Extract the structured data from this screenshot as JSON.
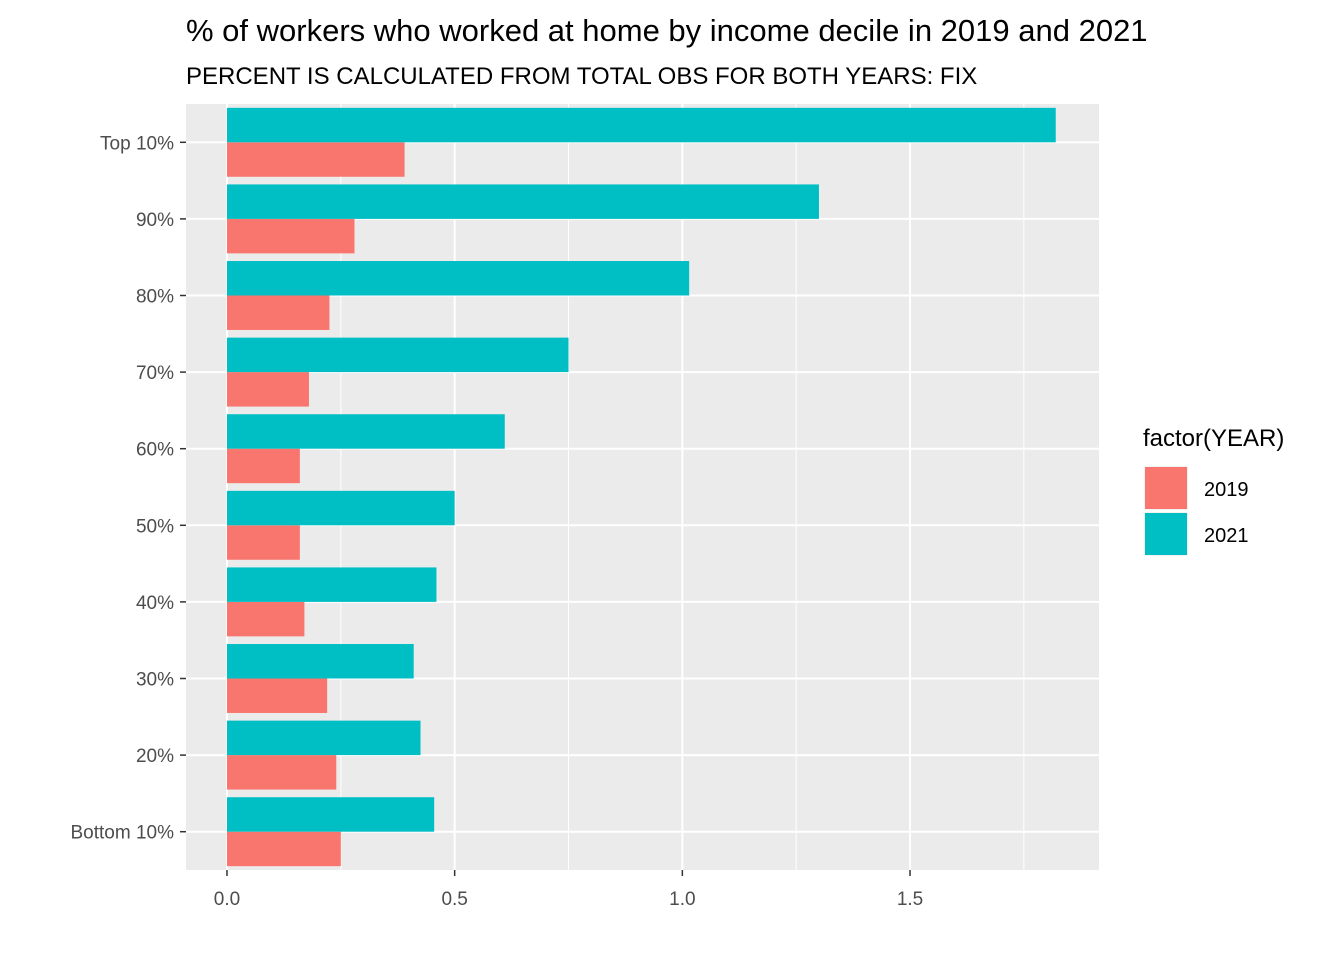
{
  "chart_data": {
    "type": "bar",
    "orientation": "horizontal",
    "title": "% of workers who worked at home by income decile in 2019 and 2021",
    "subtitle": "PERCENT IS CALCULATED FROM TOTAL OBS FOR BOTH YEARS: FIX",
    "categories": [
      "Bottom 10%",
      "20%",
      "30%",
      "40%",
      "50%",
      "60%",
      "70%",
      "80%",
      "90%",
      "Top 10%"
    ],
    "series": [
      {
        "name": "2019",
        "color": "#F8766D",
        "values": [
          0.25,
          0.24,
          0.22,
          0.17,
          0.16,
          0.16,
          0.18,
          0.225,
          0.28,
          0.39
        ]
      },
      {
        "name": "2021",
        "color": "#00BFC4",
        "values": [
          0.455,
          0.425,
          0.41,
          0.46,
          0.5,
          0.61,
          0.75,
          1.015,
          1.3,
          1.82
        ]
      }
    ],
    "xlim": [
      -0.09,
      1.915
    ],
    "x_ticks": [
      0.0,
      0.5,
      1.0,
      1.5
    ],
    "x_tick_labels": [
      "0.0",
      "0.5",
      "1.0",
      "1.5"
    ],
    "xlabel": "",
    "ylabel": "",
    "grid": true,
    "legend": {
      "title": "factor(YEAR)",
      "position": "right"
    },
    "background_color": "#EBEBEB",
    "grid_color": "#FFFFFF"
  }
}
